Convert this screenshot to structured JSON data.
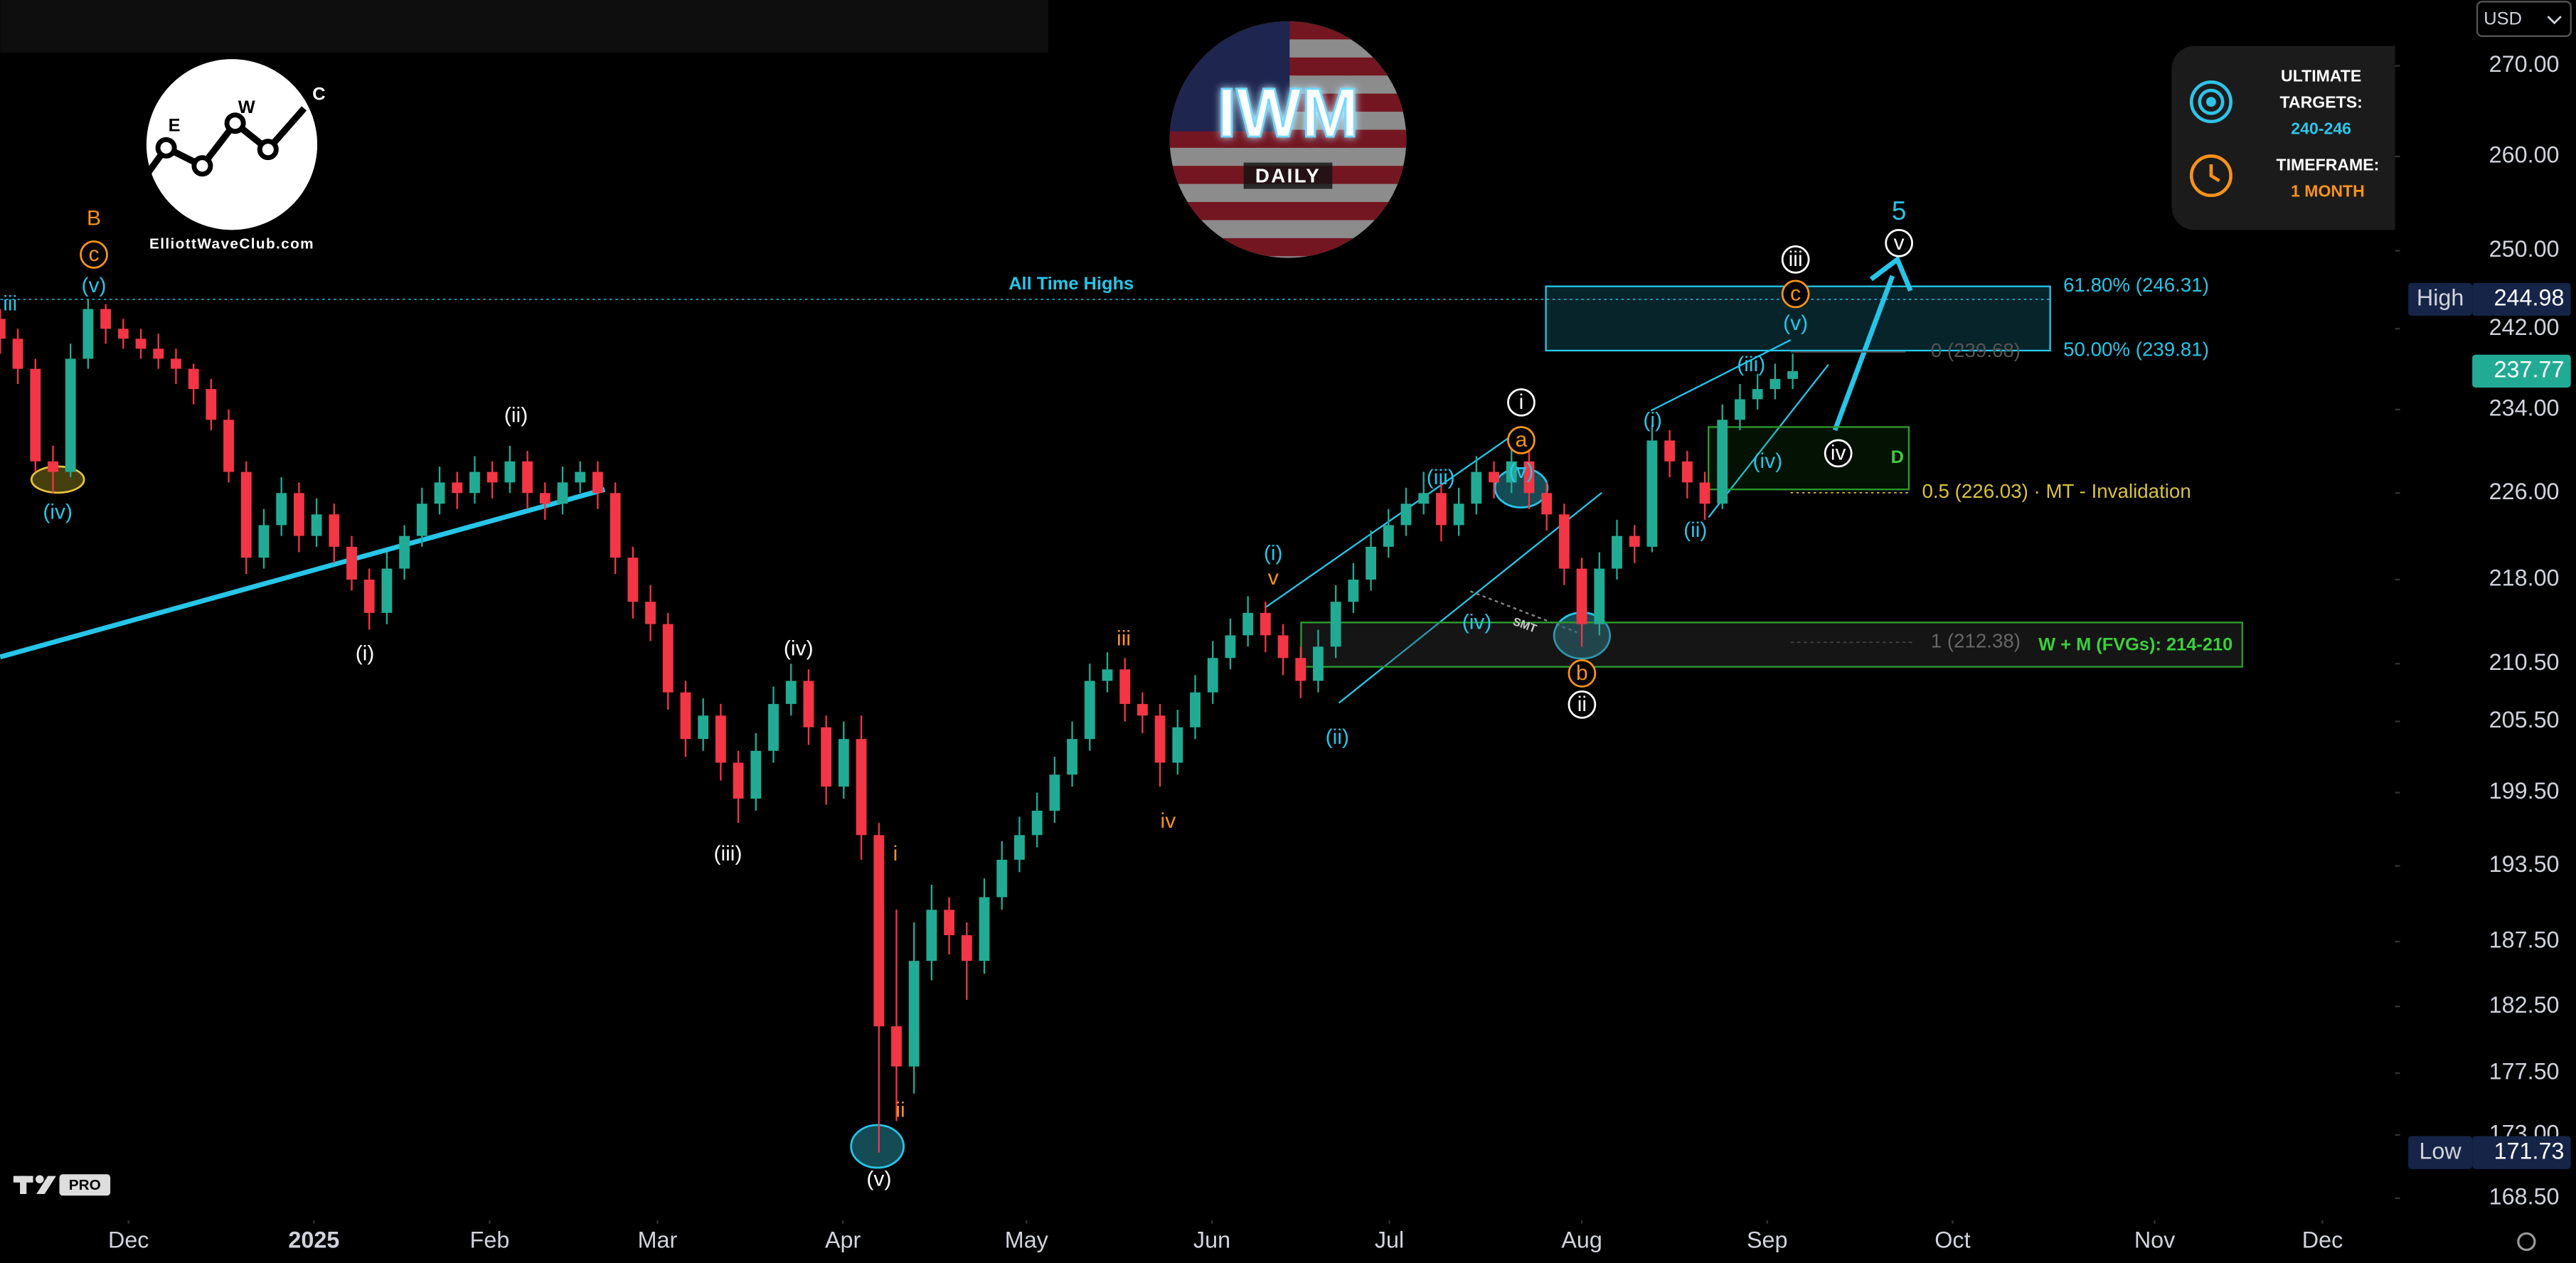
{
  "chart_data": {
    "type": "candlestick",
    "currency": "USD",
    "log_scale": true,
    "up_color": "#22ab94",
    "down_color": "#f23645",
    "xlim": [
      0,
      272
    ],
    "xticks": [
      {
        "value": 14.6,
        "label": "Dec"
      },
      {
        "value": 35.7,
        "label": "2025"
      },
      {
        "value": 55.7,
        "label": "Feb"
      },
      {
        "value": 74.8,
        "label": "Mar"
      },
      {
        "value": 95.9,
        "label": "Apr"
      },
      {
        "value": 116.8,
        "label": "May"
      },
      {
        "value": 137.9,
        "label": "Jun"
      },
      {
        "value": 158.1,
        "label": "Jul"
      },
      {
        "value": 180,
        "label": "Aug"
      },
      {
        "value": 201.1,
        "label": "Sep"
      },
      {
        "value": 222.2,
        "label": "Oct"
      },
      {
        "value": 245.2,
        "label": "Nov"
      },
      {
        "value": 264.3,
        "label": "Dec"
      }
    ],
    "ylim": [
      167.3,
      277.5
    ],
    "yticks": [
      {
        "value": 270,
        "label": "270.00"
      },
      {
        "value": 260,
        "label": "260.00"
      },
      {
        "value": 250,
        "label": "250.00"
      },
      {
        "value": 242,
        "label": "242.00"
      },
      {
        "value": 234,
        "label": "234.00"
      },
      {
        "value": 226,
        "label": "226.00"
      },
      {
        "value": 218,
        "label": "218.00"
      },
      {
        "value": 210.5,
        "label": "210.50"
      },
      {
        "value": 205.5,
        "label": "205.50"
      },
      {
        "value": 199.5,
        "label": "199.50"
      },
      {
        "value": 193.5,
        "label": "193.50"
      },
      {
        "value": 187.5,
        "label": "187.50"
      },
      {
        "value": 182.5,
        "label": "182.50"
      },
      {
        "value": 177.5,
        "label": "177.50"
      },
      {
        "value": 173,
        "label": "173.00"
      },
      {
        "value": 168.5,
        "label": "168.50"
      }
    ],
    "candles": {
      "x": [
        0,
        2,
        4,
        6,
        8,
        10,
        12,
        14,
        16,
        18,
        20,
        22,
        24,
        26,
        28,
        30,
        32,
        34,
        36,
        38,
        40,
        42,
        44,
        46,
        48,
        50,
        52,
        54,
        56,
        58,
        60,
        62,
        64,
        66,
        68,
        70,
        72,
        74,
        76,
        78,
        80,
        82,
        84,
        86,
        88,
        90,
        92,
        94,
        96,
        98,
        100,
        102,
        104,
        106,
        108,
        110,
        112,
        114,
        116,
        118,
        120,
        122,
        124,
        126,
        128,
        130,
        132,
        134,
        136,
        138,
        140,
        142,
        144,
        146,
        148,
        150,
        152,
        154,
        156,
        158,
        160,
        162,
        164,
        166,
        168,
        170,
        172,
        174,
        176,
        178,
        180,
        182,
        184,
        186,
        188,
        190,
        192,
        194,
        196,
        198,
        200,
        202,
        204
      ],
      "open": [
        243,
        241,
        238,
        229,
        228,
        239,
        244,
        242,
        241,
        240,
        239,
        238,
        236,
        233,
        228,
        220,
        223,
        226,
        222,
        224,
        221,
        218,
        215,
        219,
        222,
        225,
        227,
        226,
        228,
        227,
        229,
        226,
        225,
        227,
        228,
        226,
        220,
        216,
        214,
        208,
        204,
        206,
        202,
        199,
        203,
        207,
        209,
        205,
        200,
        204,
        196,
        181,
        178,
        186,
        190,
        188,
        186,
        191,
        194,
        196,
        198,
        201,
        204,
        209,
        210,
        207,
        206,
        202,
        205,
        208,
        211,
        213,
        215,
        213,
        211,
        209,
        212,
        216,
        218,
        221,
        223,
        225,
        226,
        223,
        225,
        228,
        227,
        229,
        226,
        224,
        219,
        214,
        219,
        222,
        221,
        231,
        229,
        227,
        225,
        233,
        235,
        236,
        237
      ],
      "high": [
        244,
        242,
        239,
        230.5,
        240.5,
        244.98,
        244.5,
        243,
        242,
        241.5,
        240,
        238.5,
        237,
        234,
        229,
        224.5,
        227.5,
        227,
        225.5,
        225,
        222,
        219,
        220.5,
        223,
        226.5,
        228.5,
        228,
        229.5,
        229,
        230.5,
        230,
        227,
        228.5,
        229,
        229,
        227,
        221,
        217.5,
        215,
        209,
        207.5,
        207,
        203,
        204.5,
        208.5,
        210.5,
        210,
        206,
        205.5,
        206,
        197,
        190,
        189,
        192,
        191,
        189,
        192.5,
        195.5,
        197.5,
        199.5,
        202.5,
        205.5,
        210.5,
        211.5,
        211,
        208,
        207,
        206.5,
        209.5,
        212.5,
        214.5,
        216.5,
        216,
        214,
        212,
        213.5,
        217.5,
        219.5,
        222.5,
        224.5,
        226.5,
        228,
        227,
        226.5,
        229.5,
        229,
        230.5,
        230,
        227,
        225,
        220,
        220.5,
        223.5,
        223,
        232.5,
        232,
        230,
        228,
        234.5,
        236.5,
        237.5,
        238.5,
        239.5
      ],
      "low": [
        239.5,
        236.5,
        228,
        226,
        227.5,
        238,
        240.5,
        240,
        239,
        238,
        236.5,
        234.5,
        232,
        227,
        218.5,
        219,
        222,
        220.5,
        221,
        219.5,
        217,
        213.5,
        214,
        218,
        221,
        224,
        224.5,
        225,
        225.5,
        226,
        224.5,
        223.5,
        224,
        226,
        224.5,
        218.5,
        214.5,
        212.5,
        206.5,
        202.5,
        203,
        200.5,
        197,
        198,
        202,
        206,
        203.5,
        198.5,
        199,
        194,
        171.73,
        174,
        176,
        184.5,
        186.5,
        183,
        185,
        190,
        193,
        195,
        197,
        200,
        203,
        208,
        205.5,
        204.5,
        200,
        201,
        204,
        207,
        210,
        212,
        211.5,
        209.5,
        207.5,
        208,
        211,
        215,
        217,
        220,
        222,
        224,
        221.5,
        222,
        224,
        225.5,
        226,
        224.5,
        222.5,
        217.5,
        212,
        213,
        218,
        219.5,
        220.5,
        227.5,
        225.5,
        223.5,
        224.5,
        232,
        234,
        235,
        236
      ],
      "close": [
        241,
        238,
        229,
        228,
        239,
        244,
        242,
        241,
        240,
        239,
        238,
        236,
        233,
        228,
        220,
        223,
        226,
        222,
        224,
        221,
        218,
        215,
        219,
        222,
        225,
        227,
        226,
        228,
        227,
        229,
        226,
        225,
        227,
        228,
        226,
        220,
        216,
        214,
        208,
        204,
        206,
        202,
        199,
        203,
        207,
        209,
        205,
        200,
        204,
        196,
        181,
        178,
        186,
        190,
        188,
        186,
        191,
        194,
        196,
        198,
        201,
        204,
        209,
        210,
        207,
        206,
        202,
        205,
        208,
        211,
        213,
        215,
        213,
        211,
        209,
        212,
        216,
        218,
        221,
        223,
        225,
        226,
        223,
        225,
        228,
        227,
        229,
        226,
        224,
        219,
        214,
        219,
        222,
        221,
        231,
        229,
        227,
        225,
        233,
        235,
        236,
        237,
        237.77
      ]
    },
    "price_tags": [
      {
        "label": "High",
        "value": 244.98
      },
      {
        "value": 237.77
      },
      {
        "label": "Low",
        "value": 171.73
      }
    ],
    "ath_label": "All Time Highs",
    "fib_levels": [
      {
        "label": "61.80% (246.31)",
        "value": 246.31
      },
      {
        "label": "50.00% (239.81)",
        "value": 239.81
      },
      {
        "label": "0 (239.68)",
        "value": 239.68
      },
      {
        "label": "0.5 (226.03) · MT - Invalidation",
        "value": 226.03
      },
      {
        "label": "1 (212.38)",
        "value": 212.38
      }
    ],
    "zone_label": "W + M (FVGs): 214-210",
    "box_label": "D",
    "smt_label": "SMT",
    "wave_labels": [
      "iii",
      "B",
      "c",
      "(v)",
      "(iv)",
      "(ii)",
      "(i)",
      "(iv)",
      "(iii)",
      "(v)",
      "i",
      "ii",
      "iii",
      "iv",
      "v",
      "(i)",
      "(ii)",
      "(iii)",
      "(iv)",
      "(v)",
      "a",
      "i",
      "b",
      "ii",
      "(i)",
      "(ii)",
      "(iii)",
      "(iv)",
      "(v)",
      "c",
      "iii",
      "iv",
      "v",
      "5"
    ]
  },
  "logo": {
    "letters": [
      "E",
      "W",
      "C"
    ],
    "site": "ElliottWaveClub.com"
  },
  "badge": {
    "ticker": "IWM",
    "timeframe": "DAILY"
  },
  "info_box": {
    "line1": "ULTIMATE",
    "line2": "TARGETS:",
    "targets": "240-246",
    "timeframe_title": "TIMEFRAME:",
    "timeframe": "1 MONTH"
  },
  "platform": {
    "plan": "PRO"
  }
}
